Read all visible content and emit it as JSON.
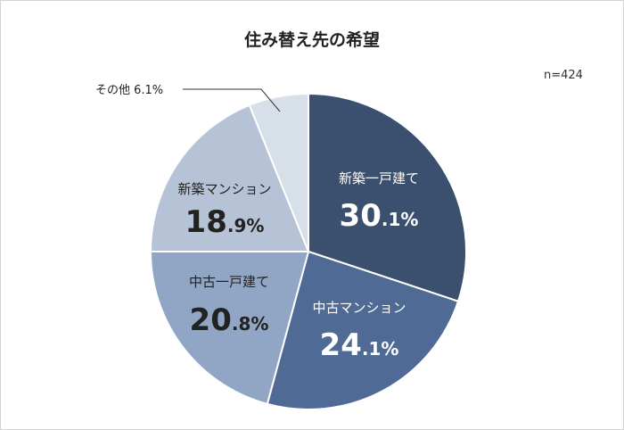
{
  "chart_data": {
    "type": "pie",
    "title": "住み替え先の希望",
    "note": "n=424",
    "slices": [
      {
        "label": "新築一戸建て",
        "value": 30.1,
        "int": "30",
        "dec": ".1%",
        "color": "#3b4f6e",
        "text_color": "#ffffff"
      },
      {
        "label": "中古マンション",
        "value": 24.1,
        "int": "24",
        "dec": ".1%",
        "color": "#4f6a94",
        "text_color": "#ffffff"
      },
      {
        "label": "中古一戸建て",
        "value": 20.8,
        "int": "20",
        "dec": ".8%",
        "color": "#91a6c4",
        "text_color": "#222222"
      },
      {
        "label": "新築マンション",
        "value": 18.9,
        "int": "18",
        "dec": ".9%",
        "color": "#b6c3d6",
        "text_color": "#222222"
      },
      {
        "label": "その他",
        "value": 6.1,
        "int": "",
        "dec": "6.1%",
        "color": "#d7dfe9",
        "text_color": "#222222",
        "callout": true
      }
    ],
    "callout_text": "その他 6.1%"
  }
}
